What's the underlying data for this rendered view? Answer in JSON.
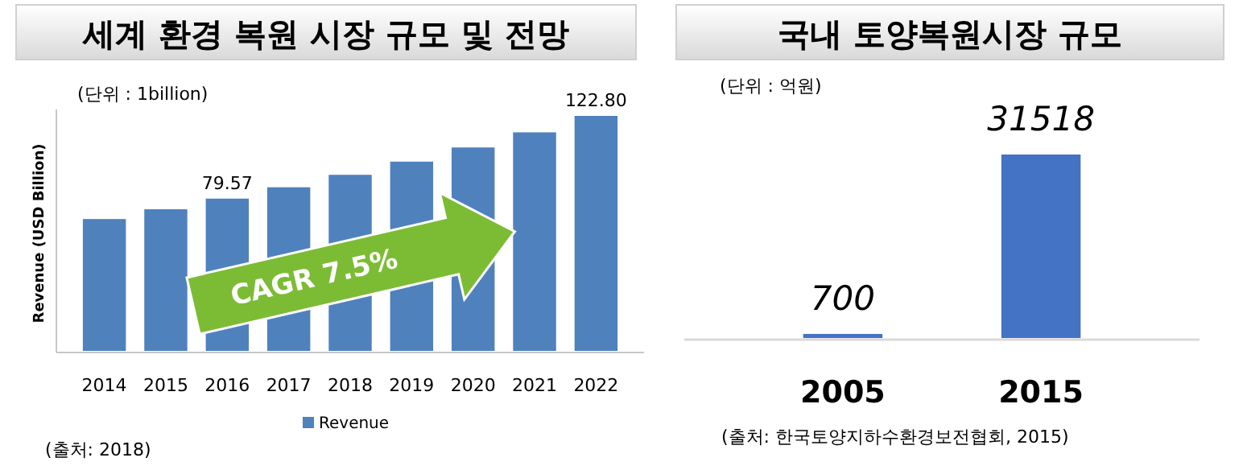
{
  "chart_data": [
    {
      "type": "bar",
      "title": "세계 환경 복원 시장 규모 및 전망",
      "ylabel": "Revenue (USD Billion)",
      "categories": [
        "2014",
        "2015",
        "2016",
        "2017",
        "2018",
        "2019",
        "2020",
        "2021",
        "2022"
      ],
      "series": [
        {
          "name": "Revenue",
          "color": "#4f81bd",
          "values": [
            68.9,
            74.0,
            79.57,
            85.5,
            92.0,
            98.9,
            106.3,
            114.2,
            122.8
          ],
          "value_labels": [
            null,
            null,
            "79.57",
            null,
            null,
            null,
            null,
            null,
            "122.80"
          ]
        }
      ],
      "legend": "bottom",
      "annotations": [
        "(단위 : 1billion)",
        "CAGR 7.5%",
        "(출처: 2018)"
      ]
    },
    {
      "type": "bar",
      "title": "국내 토양복원시장 규모",
      "categories": [
        "2005",
        "2015"
      ],
      "series": [
        {
          "color": "#4472c4",
          "values": [
            700,
            31518
          ]
        }
      ],
      "data_labels": true,
      "annotations": [
        "(단위 : 억원)",
        "(출처: 한국토양지하수환경보전협회, 2015)"
      ]
    }
  ]
}
